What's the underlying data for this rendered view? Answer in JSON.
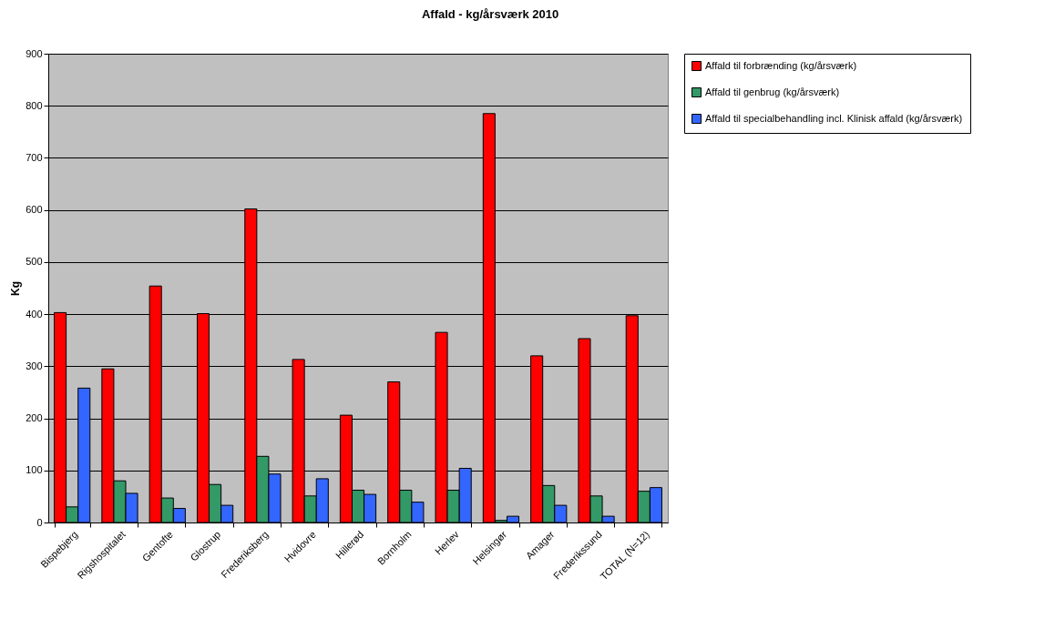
{
  "chart_data": {
    "type": "bar",
    "title": "Affald - kg/årsværk 2010",
    "ylabel": "Kg",
    "categories": [
      "Bispebjerg",
      "Rigshospitalet",
      "Gentofte",
      "Glostrup",
      "Frederiksberg",
      "Hvidovre",
      "Hillerød",
      "Bornholm",
      "Herlev",
      "Helsingør",
      "Amager",
      "Frederikssund",
      "TOTAL (N=12)"
    ],
    "series": [
      {
        "name": "Affald til forbrænding (kg/årsværk)",
        "color": "#ff0000",
        "values": [
          403,
          295,
          454,
          401,
          602,
          313,
          206,
          270,
          365,
          785,
          320,
          353,
          397
        ]
      },
      {
        "name": "Affald til genbrug (kg/årsværk)",
        "color": "#339966",
        "values": [
          30,
          80,
          47,
          73,
          127,
          51,
          62,
          62,
          62,
          4,
          71,
          51,
          60
        ]
      },
      {
        "name": "Affald til specialbehandling incl. Klinisk affald (kg/årsværk)",
        "color": "#3366ff",
        "values": [
          258,
          56,
          27,
          33,
          93,
          84,
          54,
          39,
          104,
          12,
          33,
          12,
          67
        ]
      }
    ],
    "ylim": [
      0,
      900
    ],
    "yticks": [
      0,
      100,
      200,
      300,
      400,
      500,
      600,
      700,
      800,
      900
    ],
    "grid": "y",
    "legend": "right"
  }
}
